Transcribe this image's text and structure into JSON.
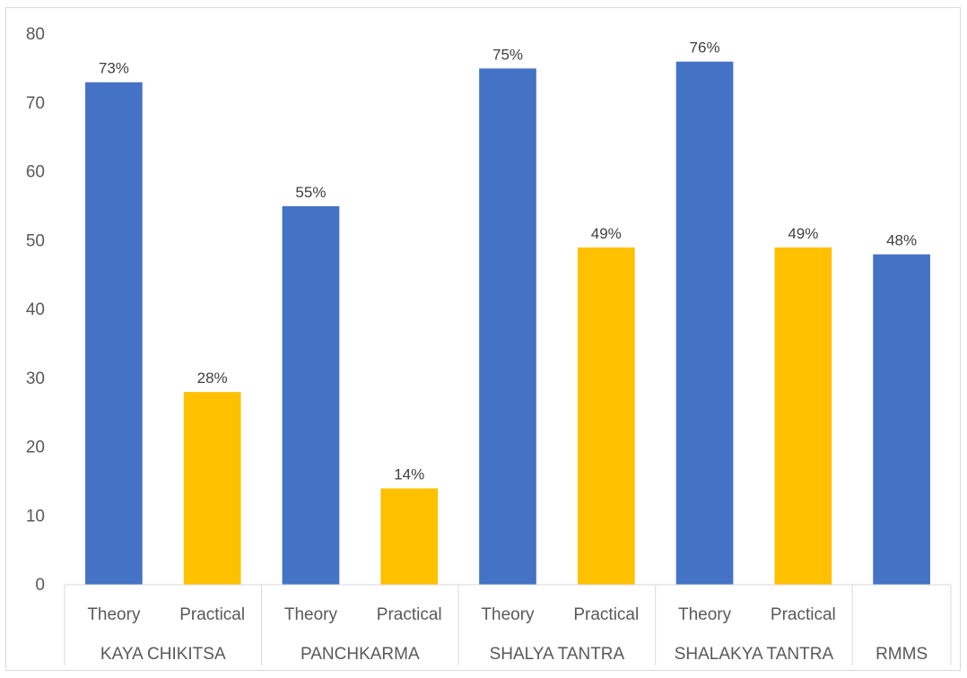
{
  "chart_data": {
    "type": "bar",
    "title": "",
    "xlabel": "",
    "ylabel": "",
    "ylim": [
      0,
      80
    ],
    "yticks": [
      0,
      10,
      20,
      30,
      40,
      50,
      60,
      70,
      80
    ],
    "grid": false,
    "legend": "none",
    "groups": [
      {
        "name": "KAYA CHIKITSA",
        "bars": [
          {
            "category": "Theory",
            "value": 73,
            "label": "73%",
            "color": "#4472c4"
          },
          {
            "category": "Practical",
            "value": 28,
            "label": "28%",
            "color": "#ffc000"
          }
        ]
      },
      {
        "name": "PANCHKARMA",
        "bars": [
          {
            "category": "Theory",
            "value": 55,
            "label": "55%",
            "color": "#4472c4"
          },
          {
            "category": "Practical",
            "value": 14,
            "label": "14%",
            "color": "#ffc000"
          }
        ]
      },
      {
        "name": "SHALYA TANTRA",
        "bars": [
          {
            "category": "Theory",
            "value": 75,
            "label": "75%",
            "color": "#4472c4"
          },
          {
            "category": "Practical",
            "value": 49,
            "label": "49%",
            "color": "#ffc000"
          }
        ]
      },
      {
        "name": "SHALAKYA TANTRA",
        "bars": [
          {
            "category": "Theory",
            "value": 76,
            "label": "76%",
            "color": "#4472c4"
          },
          {
            "category": "Practical",
            "value": 49,
            "label": "49%",
            "color": "#ffc000"
          }
        ]
      },
      {
        "name": "RMMS",
        "bars": [
          {
            "category": "",
            "value": 48,
            "label": "48%",
            "color": "#4472c4"
          }
        ]
      }
    ]
  }
}
